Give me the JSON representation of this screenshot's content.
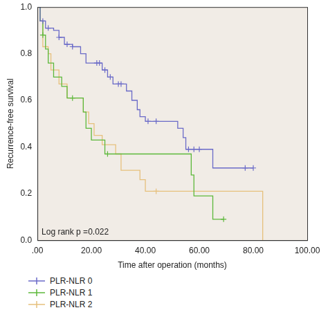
{
  "chart_data": {
    "type": "line",
    "line_style": "step",
    "x_label": "Time after operation (months)",
    "y_label": "Recurrence-free survival",
    "annotation": "Log rank p =0.022",
    "legend": "bottom",
    "grid": false,
    "xlim": [
      0,
      100
    ],
    "xticks": [
      {
        "value": 0,
        "label": ".00"
      },
      {
        "value": 20,
        "label": "20.00"
      },
      {
        "value": 40,
        "label": "40.00"
      },
      {
        "value": 60,
        "label": "60.00"
      },
      {
        "value": 80,
        "label": "80.00"
      },
      {
        "value": 100,
        "label": "100.00"
      }
    ],
    "ylim": [
      0,
      1
    ],
    "yticks": [
      {
        "value": 0,
        "label": "0.0"
      },
      0.2,
      0.4,
      0.6,
      0.8,
      {
        "value": 1,
        "label": "1.0"
      }
    ],
    "series": [
      {
        "name": "PLR-NLR 0",
        "color": "#6a6ac8",
        "marker": "cross",
        "x": [
          0,
          1,
          3,
          6,
          8,
          10,
          13,
          16,
          18,
          24,
          26,
          28,
          33,
          35,
          37,
          38,
          40,
          52,
          54,
          55,
          65,
          80
        ],
        "values": [
          1.0,
          0.94,
          0.91,
          0.9,
          0.87,
          0.84,
          0.83,
          0.8,
          0.76,
          0.73,
          0.7,
          0.67,
          0.64,
          0.6,
          0.56,
          0.53,
          0.51,
          0.48,
          0.44,
          0.39,
          0.31,
          0.31
        ],
        "censored_x": [
          2,
          4,
          8,
          11,
          13,
          22,
          23,
          25,
          27,
          30,
          31,
          41,
          44,
          56,
          58,
          60,
          77,
          80
        ],
        "censored_values": [
          0.94,
          0.91,
          0.87,
          0.84,
          0.83,
          0.76,
          0.76,
          0.73,
          0.7,
          0.67,
          0.67,
          0.51,
          0.51,
          0.39,
          0.39,
          0.39,
          0.31,
          0.31
        ]
      },
      {
        "name": "PLR-NLR 1",
        "color": "#5cb83a",
        "marker": "cross",
        "x": [
          0,
          1,
          2,
          3,
          4,
          6,
          9,
          11,
          17,
          18,
          20,
          25,
          57,
          58,
          65,
          69
        ],
        "values": [
          1.0,
          0.94,
          0.88,
          0.82,
          0.76,
          0.7,
          0.66,
          0.61,
          0.55,
          0.48,
          0.43,
          0.37,
          0.28,
          0.19,
          0.09,
          0.09
        ],
        "censored_x": [
          2,
          13,
          26,
          69
        ],
        "censored_values": [
          0.88,
          0.61,
          0.37,
          0.09
        ]
      },
      {
        "name": "PLR-NLR 2",
        "color": "#e6c07c",
        "marker": "cross",
        "x": [
          0,
          1,
          2,
          4,
          5,
          8,
          11,
          17,
          19,
          21,
          24,
          29,
          31,
          38,
          40,
          83.5
        ],
        "values": [
          1.0,
          0.94,
          0.83,
          0.8,
          0.73,
          0.67,
          0.61,
          0.55,
          0.5,
          0.45,
          0.41,
          0.37,
          0.3,
          0.26,
          0.21,
          0.0
        ],
        "censored_x": [
          44
        ],
        "censored_values": [
          0.21
        ]
      }
    ]
  }
}
